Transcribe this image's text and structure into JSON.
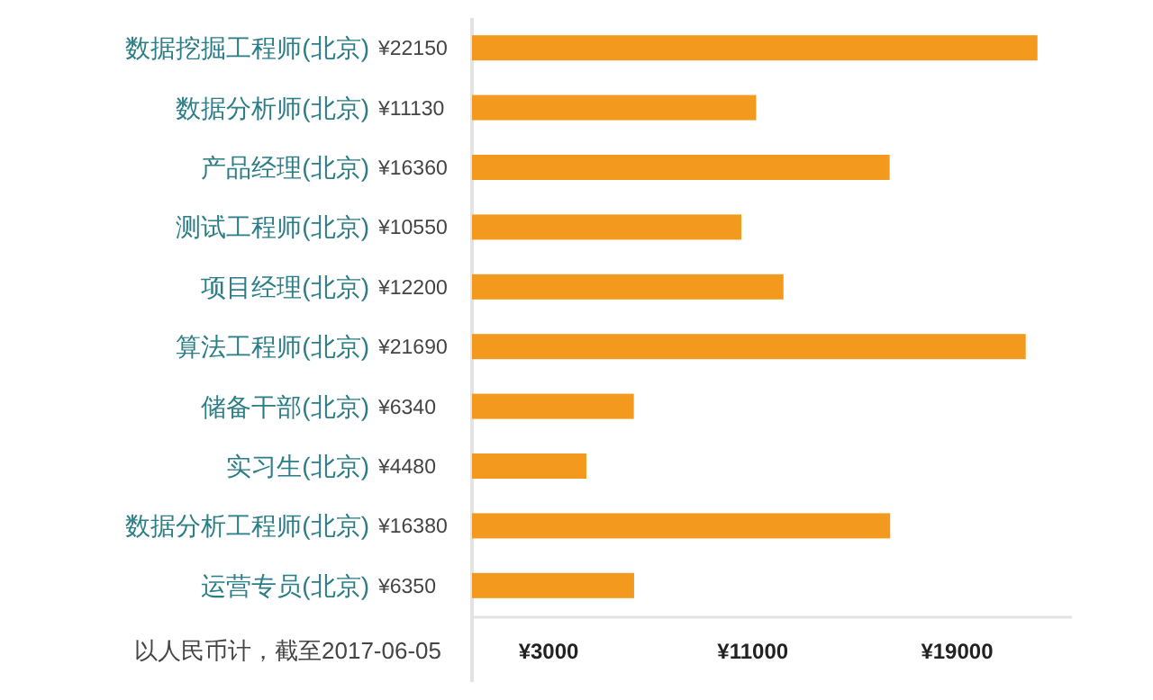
{
  "chart_data": {
    "type": "bar",
    "orientation": "horizontal",
    "categories": [
      "数据挖掘工程师(北京)",
      "数据分析师(北京)",
      "产品经理(北京)",
      "测试工程师(北京)",
      "项目经理(北京)",
      "算法工程师(北京)",
      "储备干部(北京)",
      "实习生(北京)",
      "数据分析工程师(北京)",
      "运营专员(北京)"
    ],
    "values": [
      22150,
      11130,
      16360,
      10550,
      12200,
      21690,
      6340,
      4480,
      16380,
      6350
    ],
    "value_labels": [
      "¥22150",
      "¥11130",
      "¥16360",
      "¥10550",
      "¥12200",
      "¥21690",
      "¥6340",
      "¥4480",
      "¥16380",
      "¥6350"
    ],
    "color": "#f39a1e",
    "xlim": [
      0,
      23500
    ],
    "xticks": [
      {
        "value": 3000,
        "label": "¥3000"
      },
      {
        "value": 11000,
        "label": "¥11000"
      },
      {
        "value": 19000,
        "label": "¥19000"
      }
    ],
    "annotations": [
      "以人民币计，截至2017-06-05"
    ]
  }
}
